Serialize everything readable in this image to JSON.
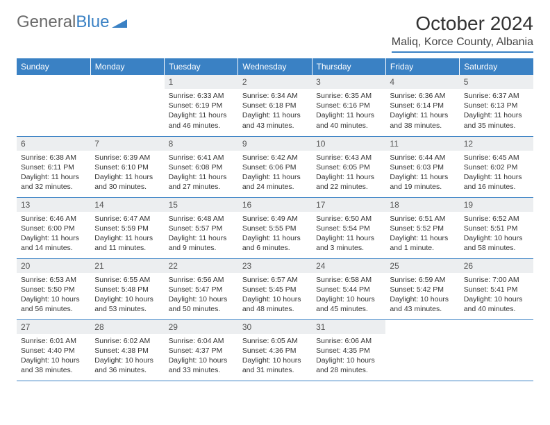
{
  "logo": {
    "text_gray": "General",
    "text_blue": "Blue"
  },
  "title": "October 2024",
  "location": "Maliq, Korce County, Albania",
  "colors": {
    "header_bg": "#3a81c4",
    "header_text": "#ffffff",
    "daynum_bg": "#eceef0",
    "body_text": "#333333",
    "logo_gray": "#6a6a6a",
    "logo_blue": "#3a81c4",
    "page_bg": "#ffffff"
  },
  "weekdays": [
    "Sunday",
    "Monday",
    "Tuesday",
    "Wednesday",
    "Thursday",
    "Friday",
    "Saturday"
  ],
  "weeks": [
    [
      null,
      null,
      {
        "n": "1",
        "sr": "Sunrise: 6:33 AM",
        "ss": "Sunset: 6:19 PM",
        "dl": "Daylight: 11 hours and 46 minutes."
      },
      {
        "n": "2",
        "sr": "Sunrise: 6:34 AM",
        "ss": "Sunset: 6:18 PM",
        "dl": "Daylight: 11 hours and 43 minutes."
      },
      {
        "n": "3",
        "sr": "Sunrise: 6:35 AM",
        "ss": "Sunset: 6:16 PM",
        "dl": "Daylight: 11 hours and 40 minutes."
      },
      {
        "n": "4",
        "sr": "Sunrise: 6:36 AM",
        "ss": "Sunset: 6:14 PM",
        "dl": "Daylight: 11 hours and 38 minutes."
      },
      {
        "n": "5",
        "sr": "Sunrise: 6:37 AM",
        "ss": "Sunset: 6:13 PM",
        "dl": "Daylight: 11 hours and 35 minutes."
      }
    ],
    [
      {
        "n": "6",
        "sr": "Sunrise: 6:38 AM",
        "ss": "Sunset: 6:11 PM",
        "dl": "Daylight: 11 hours and 32 minutes."
      },
      {
        "n": "7",
        "sr": "Sunrise: 6:39 AM",
        "ss": "Sunset: 6:10 PM",
        "dl": "Daylight: 11 hours and 30 minutes."
      },
      {
        "n": "8",
        "sr": "Sunrise: 6:41 AM",
        "ss": "Sunset: 6:08 PM",
        "dl": "Daylight: 11 hours and 27 minutes."
      },
      {
        "n": "9",
        "sr": "Sunrise: 6:42 AM",
        "ss": "Sunset: 6:06 PM",
        "dl": "Daylight: 11 hours and 24 minutes."
      },
      {
        "n": "10",
        "sr": "Sunrise: 6:43 AM",
        "ss": "Sunset: 6:05 PM",
        "dl": "Daylight: 11 hours and 22 minutes."
      },
      {
        "n": "11",
        "sr": "Sunrise: 6:44 AM",
        "ss": "Sunset: 6:03 PM",
        "dl": "Daylight: 11 hours and 19 minutes."
      },
      {
        "n": "12",
        "sr": "Sunrise: 6:45 AM",
        "ss": "Sunset: 6:02 PM",
        "dl": "Daylight: 11 hours and 16 minutes."
      }
    ],
    [
      {
        "n": "13",
        "sr": "Sunrise: 6:46 AM",
        "ss": "Sunset: 6:00 PM",
        "dl": "Daylight: 11 hours and 14 minutes."
      },
      {
        "n": "14",
        "sr": "Sunrise: 6:47 AM",
        "ss": "Sunset: 5:59 PM",
        "dl": "Daylight: 11 hours and 11 minutes."
      },
      {
        "n": "15",
        "sr": "Sunrise: 6:48 AM",
        "ss": "Sunset: 5:57 PM",
        "dl": "Daylight: 11 hours and 9 minutes."
      },
      {
        "n": "16",
        "sr": "Sunrise: 6:49 AM",
        "ss": "Sunset: 5:55 PM",
        "dl": "Daylight: 11 hours and 6 minutes."
      },
      {
        "n": "17",
        "sr": "Sunrise: 6:50 AM",
        "ss": "Sunset: 5:54 PM",
        "dl": "Daylight: 11 hours and 3 minutes."
      },
      {
        "n": "18",
        "sr": "Sunrise: 6:51 AM",
        "ss": "Sunset: 5:52 PM",
        "dl": "Daylight: 11 hours and 1 minute."
      },
      {
        "n": "19",
        "sr": "Sunrise: 6:52 AM",
        "ss": "Sunset: 5:51 PM",
        "dl": "Daylight: 10 hours and 58 minutes."
      }
    ],
    [
      {
        "n": "20",
        "sr": "Sunrise: 6:53 AM",
        "ss": "Sunset: 5:50 PM",
        "dl": "Daylight: 10 hours and 56 minutes."
      },
      {
        "n": "21",
        "sr": "Sunrise: 6:55 AM",
        "ss": "Sunset: 5:48 PM",
        "dl": "Daylight: 10 hours and 53 minutes."
      },
      {
        "n": "22",
        "sr": "Sunrise: 6:56 AM",
        "ss": "Sunset: 5:47 PM",
        "dl": "Daylight: 10 hours and 50 minutes."
      },
      {
        "n": "23",
        "sr": "Sunrise: 6:57 AM",
        "ss": "Sunset: 5:45 PM",
        "dl": "Daylight: 10 hours and 48 minutes."
      },
      {
        "n": "24",
        "sr": "Sunrise: 6:58 AM",
        "ss": "Sunset: 5:44 PM",
        "dl": "Daylight: 10 hours and 45 minutes."
      },
      {
        "n": "25",
        "sr": "Sunrise: 6:59 AM",
        "ss": "Sunset: 5:42 PM",
        "dl": "Daylight: 10 hours and 43 minutes."
      },
      {
        "n": "26",
        "sr": "Sunrise: 7:00 AM",
        "ss": "Sunset: 5:41 PM",
        "dl": "Daylight: 10 hours and 40 minutes."
      }
    ],
    [
      {
        "n": "27",
        "sr": "Sunrise: 6:01 AM",
        "ss": "Sunset: 4:40 PM",
        "dl": "Daylight: 10 hours and 38 minutes."
      },
      {
        "n": "28",
        "sr": "Sunrise: 6:02 AM",
        "ss": "Sunset: 4:38 PM",
        "dl": "Daylight: 10 hours and 36 minutes."
      },
      {
        "n": "29",
        "sr": "Sunrise: 6:04 AM",
        "ss": "Sunset: 4:37 PM",
        "dl": "Daylight: 10 hours and 33 minutes."
      },
      {
        "n": "30",
        "sr": "Sunrise: 6:05 AM",
        "ss": "Sunset: 4:36 PM",
        "dl": "Daylight: 10 hours and 31 minutes."
      },
      {
        "n": "31",
        "sr": "Sunrise: 6:06 AM",
        "ss": "Sunset: 4:35 PM",
        "dl": "Daylight: 10 hours and 28 minutes."
      },
      null,
      null
    ]
  ]
}
